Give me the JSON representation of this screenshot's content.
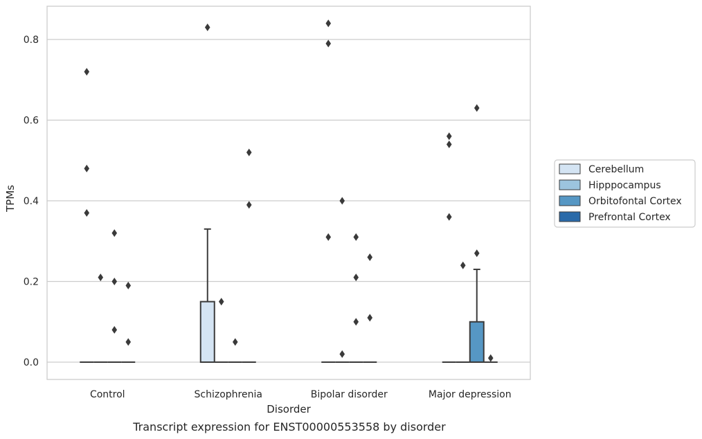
{
  "caption": "Transcript expression for ENST00000553558 by disorder",
  "chart_data": {
    "type": "box",
    "title": "",
    "xlabel": "Disorder",
    "ylabel": "TPMs",
    "ylim": [
      -0.04,
      0.885
    ],
    "yticks": [
      0.0,
      0.2,
      0.4,
      0.6,
      0.8
    ],
    "ytick_labels": [
      "0.0",
      "0.2",
      "0.4",
      "0.6",
      "0.8"
    ],
    "grid": "horizontal",
    "legend_position": "right",
    "categories": [
      "Control",
      "Schizophrenia",
      "Bipolar disorder",
      "Major depression"
    ],
    "series": [
      {
        "name": "Cerebellum",
        "color": "#d4e4f3",
        "boxes": [
          {
            "q1": 0,
            "median": 0,
            "q3": 0,
            "whisker_low": 0,
            "whisker_high": 0,
            "outliers": [
              0.72,
              0.48,
              0.37
            ]
          },
          {
            "q1": 0,
            "median": 0,
            "q3": 0.15,
            "whisker_low": 0,
            "whisker_high": 0.33,
            "outliers": [
              0.83
            ]
          },
          {
            "q1": 0,
            "median": 0,
            "q3": 0,
            "whisker_low": 0,
            "whisker_high": 0,
            "outliers": [
              0.84,
              0.79,
              0.31
            ]
          },
          {
            "q1": 0,
            "median": 0,
            "q3": 0,
            "whisker_low": 0,
            "whisker_high": 0,
            "outliers": [
              0.56,
              0.54,
              0.36
            ]
          }
        ]
      },
      {
        "name": "Hipppocampus",
        "color": "#9cc4de",
        "boxes": [
          {
            "q1": 0,
            "median": 0,
            "q3": 0,
            "whisker_low": 0,
            "whisker_high": 0,
            "outliers": [
              0.21
            ]
          },
          {
            "q1": 0,
            "median": 0,
            "q3": 0,
            "whisker_low": 0,
            "whisker_high": 0,
            "outliers": [
              0.15
            ]
          },
          {
            "q1": 0,
            "median": 0,
            "q3": 0,
            "whisker_low": 0,
            "whisker_high": 0,
            "outliers": [
              0.4,
              0.02
            ]
          },
          {
            "q1": 0,
            "median": 0,
            "q3": 0,
            "whisker_low": 0,
            "whisker_high": 0,
            "outliers": [
              0.24
            ]
          }
        ]
      },
      {
        "name": "Orbitofontal Cortex",
        "color": "#5697c4",
        "boxes": [
          {
            "q1": 0,
            "median": 0,
            "q3": 0,
            "whisker_low": 0,
            "whisker_high": 0,
            "outliers": [
              0.32,
              0.2,
              0.08
            ]
          },
          {
            "q1": 0,
            "median": 0,
            "q3": 0,
            "whisker_low": 0,
            "whisker_high": 0,
            "outliers": [
              0.05
            ]
          },
          {
            "q1": 0,
            "median": 0,
            "q3": 0,
            "whisker_low": 0,
            "whisker_high": 0,
            "outliers": [
              0.31,
              0.21,
              0.1
            ]
          },
          {
            "q1": 0,
            "median": 0,
            "q3": 0.1,
            "whisker_low": 0,
            "whisker_high": 0.23,
            "outliers": [
              0.63,
              0.27
            ]
          }
        ]
      },
      {
        "name": "Prefrontal Cortex",
        "color": "#2a6aa9",
        "boxes": [
          {
            "q1": 0,
            "median": 0,
            "q3": 0,
            "whisker_low": 0,
            "whisker_high": 0,
            "outliers": [
              0.19,
              0.05
            ]
          },
          {
            "q1": 0,
            "median": 0,
            "q3": 0,
            "whisker_low": 0,
            "whisker_high": 0,
            "outliers": [
              0.52,
              0.39
            ]
          },
          {
            "q1": 0,
            "median": 0,
            "q3": 0,
            "whisker_low": 0,
            "whisker_high": 0,
            "outliers": [
              0.26,
              0.11
            ]
          },
          {
            "q1": 0,
            "median": 0,
            "q3": 0,
            "whisker_low": 0,
            "whisker_high": 0,
            "outliers": [
              0.01
            ]
          }
        ]
      }
    ]
  }
}
